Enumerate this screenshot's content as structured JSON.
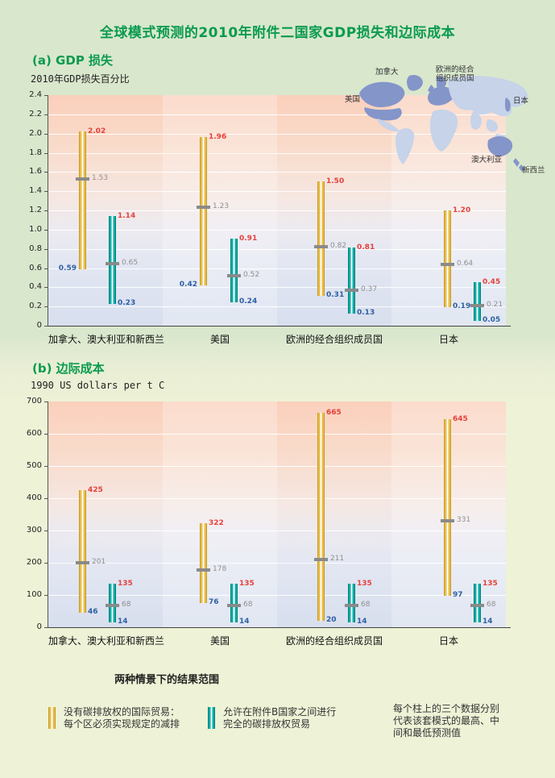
{
  "title": "全球模式预测的2010年附件二国家GDP损失和边际成本",
  "colors": {
    "green": "#0a9b4e",
    "yellow": "#e7bd4a",
    "yellow_dark": "#c79a28",
    "teal": "#0aada6",
    "teal_dark": "#00807c",
    "red": "#e5413c",
    "blue": "#2e5fa4",
    "mid_gray": "#8f8f8f",
    "map_land": "#c6d3e9",
    "map_highlight": "#8495c9"
  },
  "map": {
    "labels": {
      "canada": "加拿大",
      "oecd_europe_line1": "欧洲的经合",
      "oecd_europe_line2": "组织成员国",
      "usa": "美国",
      "japan": "日本",
      "australia": "澳大利亚",
      "new_zealand": "新西兰"
    }
  },
  "chart_data": [
    {
      "id": "gdp-loss",
      "type": "bar",
      "panel_label": "(a) GDP 损失",
      "ylabel": "2010年GDP损失百分比",
      "ylim": [
        0,
        2.4
      ],
      "ytick_step": 0.2,
      "value_decimals": 2,
      "grid": true,
      "categories": [
        "加拿大、澳大利亚和新西兰",
        "美国",
        "欧洲的经合组织成员国",
        "日本"
      ],
      "series": [
        {
          "name": "没有碳排放权的国际贸易",
          "color_key": "yellow",
          "low_label_sides": [
            "left",
            "left",
            "right",
            "right"
          ],
          "values": [
            {
              "high": 2.02,
              "mid": 1.53,
              "low": 0.59
            },
            {
              "high": 1.96,
              "mid": 1.23,
              "low": 0.42
            },
            {
              "high": 1.5,
              "mid": 0.82,
              "low": 0.31
            },
            {
              "high": 1.2,
              "mid": 0.64,
              "low": 0.19
            }
          ]
        },
        {
          "name": "完全的碳排放权贸易",
          "color_key": "teal",
          "low_label_sides": [
            "right",
            "right",
            "right",
            "right"
          ],
          "values": [
            {
              "high": 1.14,
              "mid": 0.65,
              "low": 0.23
            },
            {
              "high": 0.91,
              "mid": 0.52,
              "low": 0.24
            },
            {
              "high": 0.81,
              "mid": 0.37,
              "low": 0.13
            },
            {
              "high": 0.45,
              "mid": 0.21,
              "low": 0.05
            }
          ]
        }
      ]
    },
    {
      "id": "marginal-cost",
      "type": "bar",
      "panel_label": "(b) 边际成本",
      "ylabel": "1990 US dollars per t C",
      "ylim": [
        0,
        700
      ],
      "ytick_step": 100,
      "value_decimals": 0,
      "grid": true,
      "categories": [
        "加拿大、澳大利亚和新西兰",
        "美国",
        "欧洲的经合组织成员国",
        "日本"
      ],
      "series": [
        {
          "name": "没有碳排放权的国际贸易",
          "color_key": "yellow",
          "low_label_sides": [
            "right",
            "right",
            "right",
            "right"
          ],
          "values": [
            {
              "high": 425,
              "mid": 201,
              "low": 46
            },
            {
              "high": 322,
              "mid": 178,
              "low": 76
            },
            {
              "high": 665,
              "mid": 211,
              "low": 20
            },
            {
              "high": 645,
              "mid": 331,
              "low": 97
            }
          ]
        },
        {
          "name": "完全的碳排放权贸易",
          "color_key": "teal",
          "low_label_sides": [
            "right",
            "right",
            "right",
            "right"
          ],
          "values": [
            {
              "high": 135,
              "mid": 68,
              "low": 14
            },
            {
              "high": 135,
              "mid": 68,
              "low": 14
            },
            {
              "high": 135,
              "mid": 68,
              "low": 14
            },
            {
              "high": 135,
              "mid": 68,
              "low": 14
            }
          ]
        }
      ]
    }
  ],
  "footnote": "两种情景下的结果范围",
  "legend": {
    "items": [
      {
        "color_key": "yellow",
        "lines": [
          "没有碳排放权的国际贸易：",
          "每个区必须实现规定的减排"
        ]
      },
      {
        "color_key": "teal",
        "lines": [
          "允许在附件B国家之间进行",
          "完全的碳排放权贸易"
        ]
      }
    ],
    "note_lines": [
      "每个柱上的三个数据分别",
      "代表该套模式的最高、中",
      "间和最低预测值"
    ]
  }
}
